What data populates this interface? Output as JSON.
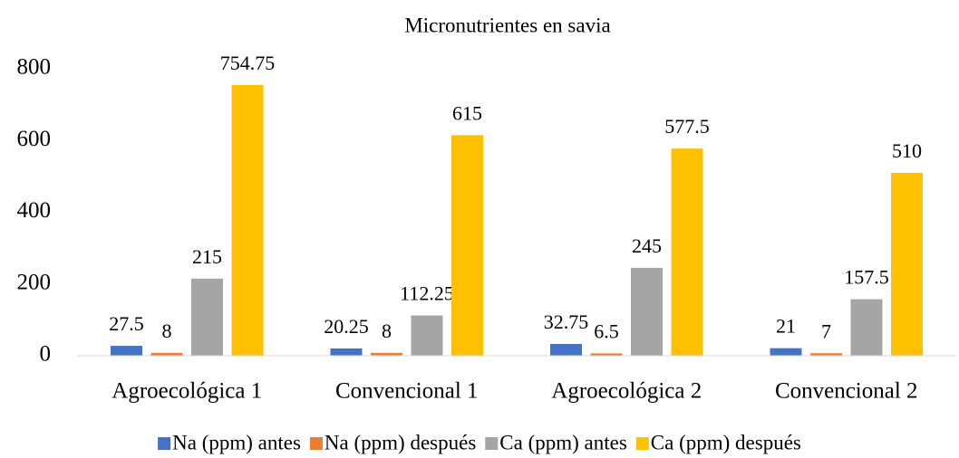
{
  "chart_data": {
    "type": "bar",
    "title": "Micronutrientes en savia",
    "categories": [
      "Agroecológica 1",
      "Convencional 1",
      "Agroecológica 2",
      "Convencional 2"
    ],
    "series": [
      {
        "name": "Na (ppm) antes",
        "color": "#4472c4",
        "values": [
          27.5,
          20.25,
          32.75,
          21
        ]
      },
      {
        "name": "Na (ppm) después",
        "color": "#ed7d31",
        "values": [
          8,
          8,
          6.5,
          7
        ]
      },
      {
        "name": "Ca (ppm) antes",
        "color": "#a5a5a5",
        "values": [
          215,
          112.25,
          245,
          157.5
        ]
      },
      {
        "name": "Ca (ppm) después",
        "color": "#ffc000",
        "values": [
          754.75,
          615,
          577.5,
          510
        ]
      }
    ],
    "ylim": [
      0,
      800
    ],
    "yticks": [
      0,
      200,
      400,
      600,
      800
    ],
    "grid": false,
    "legend": "bottom"
  }
}
